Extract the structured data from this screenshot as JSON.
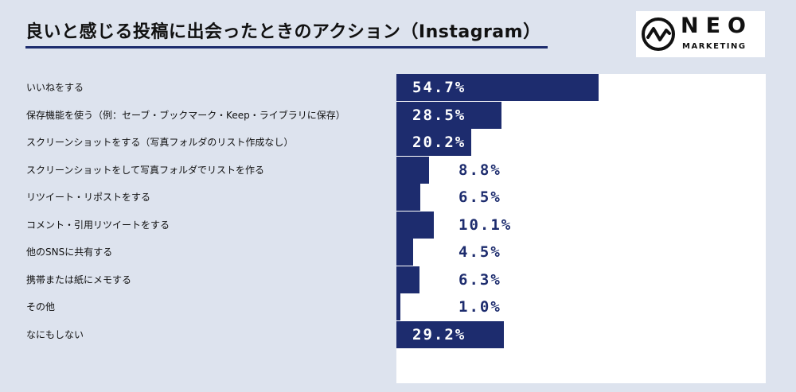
{
  "title": "良いと感じる投稿に出会ったときのアクション（Instagram）",
  "logo": {
    "main": "NEO",
    "sub": "MARKETING"
  },
  "colors": {
    "bar": "#1d2c6e",
    "background": "#dde3ee",
    "plot": "#ffffff"
  },
  "chart_data": {
    "type": "bar",
    "orientation": "horizontal",
    "categories": [
      "いいねをする",
      "保存機能を使う（例：セーブ・ブックマーク・Keep・ライブラリに保存）",
      "スクリーンショットをする（写真フォルダのリスト作成なし）",
      "スクリーンショットをして写真フォルダでリストを作る",
      "リツイート・リポストをする",
      "コメント・引用リツイートをする",
      "他のSNSに共有する",
      "携帯または紙にメモする",
      "その他",
      "なにもしない"
    ],
    "values": [
      54.7,
      28.5,
      20.2,
      8.8,
      6.5,
      10.1,
      4.5,
      6.3,
      1.0,
      29.2
    ],
    "value_labels": [
      "54.7%",
      "28.5%",
      "20.2%",
      "8.8%",
      "6.5%",
      "10.1%",
      "4.5%",
      "6.3%",
      "1.0%",
      "29.2%"
    ],
    "xlim": [
      0,
      100
    ],
    "grid": false,
    "legend": "none"
  }
}
